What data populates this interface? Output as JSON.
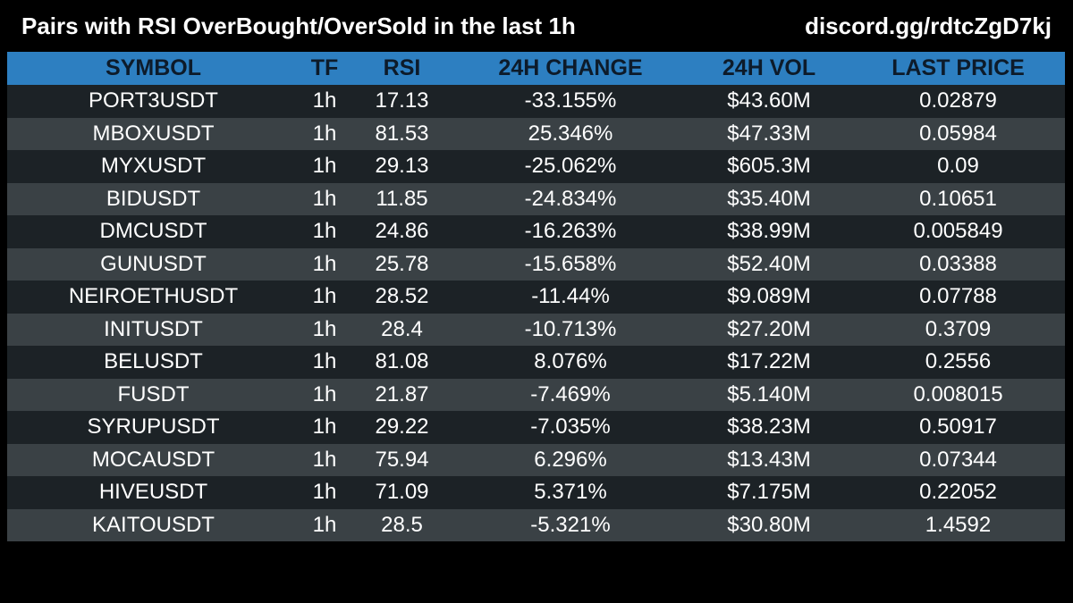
{
  "header": {
    "title": "Pairs with RSI OverBought/OverSold in the last 1h",
    "link": "discord.gg/rdtcZgD7kj"
  },
  "table": {
    "columns": [
      "SYMBOL",
      "TF",
      "RSI",
      "24H CHANGE",
      "24H VOL",
      "LAST PRICE"
    ],
    "rows": [
      [
        "PORT3USDT",
        "1h",
        "17.13",
        "-33.155%",
        "$43.60M",
        "0.02879"
      ],
      [
        "MBOXUSDT",
        "1h",
        "81.53",
        "25.346%",
        "$47.33M",
        "0.05984"
      ],
      [
        "MYXUSDT",
        "1h",
        "29.13",
        "-25.062%",
        "$605.3M",
        "0.09"
      ],
      [
        "BIDUSDT",
        "1h",
        "11.85",
        "-24.834%",
        "$35.40M",
        "0.10651"
      ],
      [
        "DMCUSDT",
        "1h",
        "24.86",
        "-16.263%",
        "$38.99M",
        "0.005849"
      ],
      [
        "GUNUSDT",
        "1h",
        "25.78",
        "-15.658%",
        "$52.40M",
        "0.03388"
      ],
      [
        "NEIROETHUSDT",
        "1h",
        "28.52",
        "-11.44%",
        "$9.089M",
        "0.07788"
      ],
      [
        "INITUSDT",
        "1h",
        "28.4",
        "-10.713%",
        "$27.20M",
        "0.3709"
      ],
      [
        "BELUSDT",
        "1h",
        "81.08",
        "8.076%",
        "$17.22M",
        "0.2556"
      ],
      [
        "FUSDT",
        "1h",
        "21.87",
        "-7.469%",
        "$5.140M",
        "0.008015"
      ],
      [
        "SYRUPUSDT",
        "1h",
        "29.22",
        "-7.035%",
        "$38.23M",
        "0.50917"
      ],
      [
        "MOCAUSDT",
        "1h",
        "75.94",
        "6.296%",
        "$13.43M",
        "0.07344"
      ],
      [
        "HIVEUSDT",
        "1h",
        "71.09",
        "5.371%",
        "$7.175M",
        "0.22052"
      ],
      [
        "KAITOUSDT",
        "1h",
        "28.5",
        "-5.321%",
        "$30.80M",
        "1.4592"
      ]
    ]
  },
  "colors": {
    "background": "#000000",
    "header_bar": "#2d7fc1",
    "header_text": "#0d1b2a",
    "row_dark": "#1c2226",
    "row_light": "#3a4145",
    "text": "#ffffff"
  }
}
